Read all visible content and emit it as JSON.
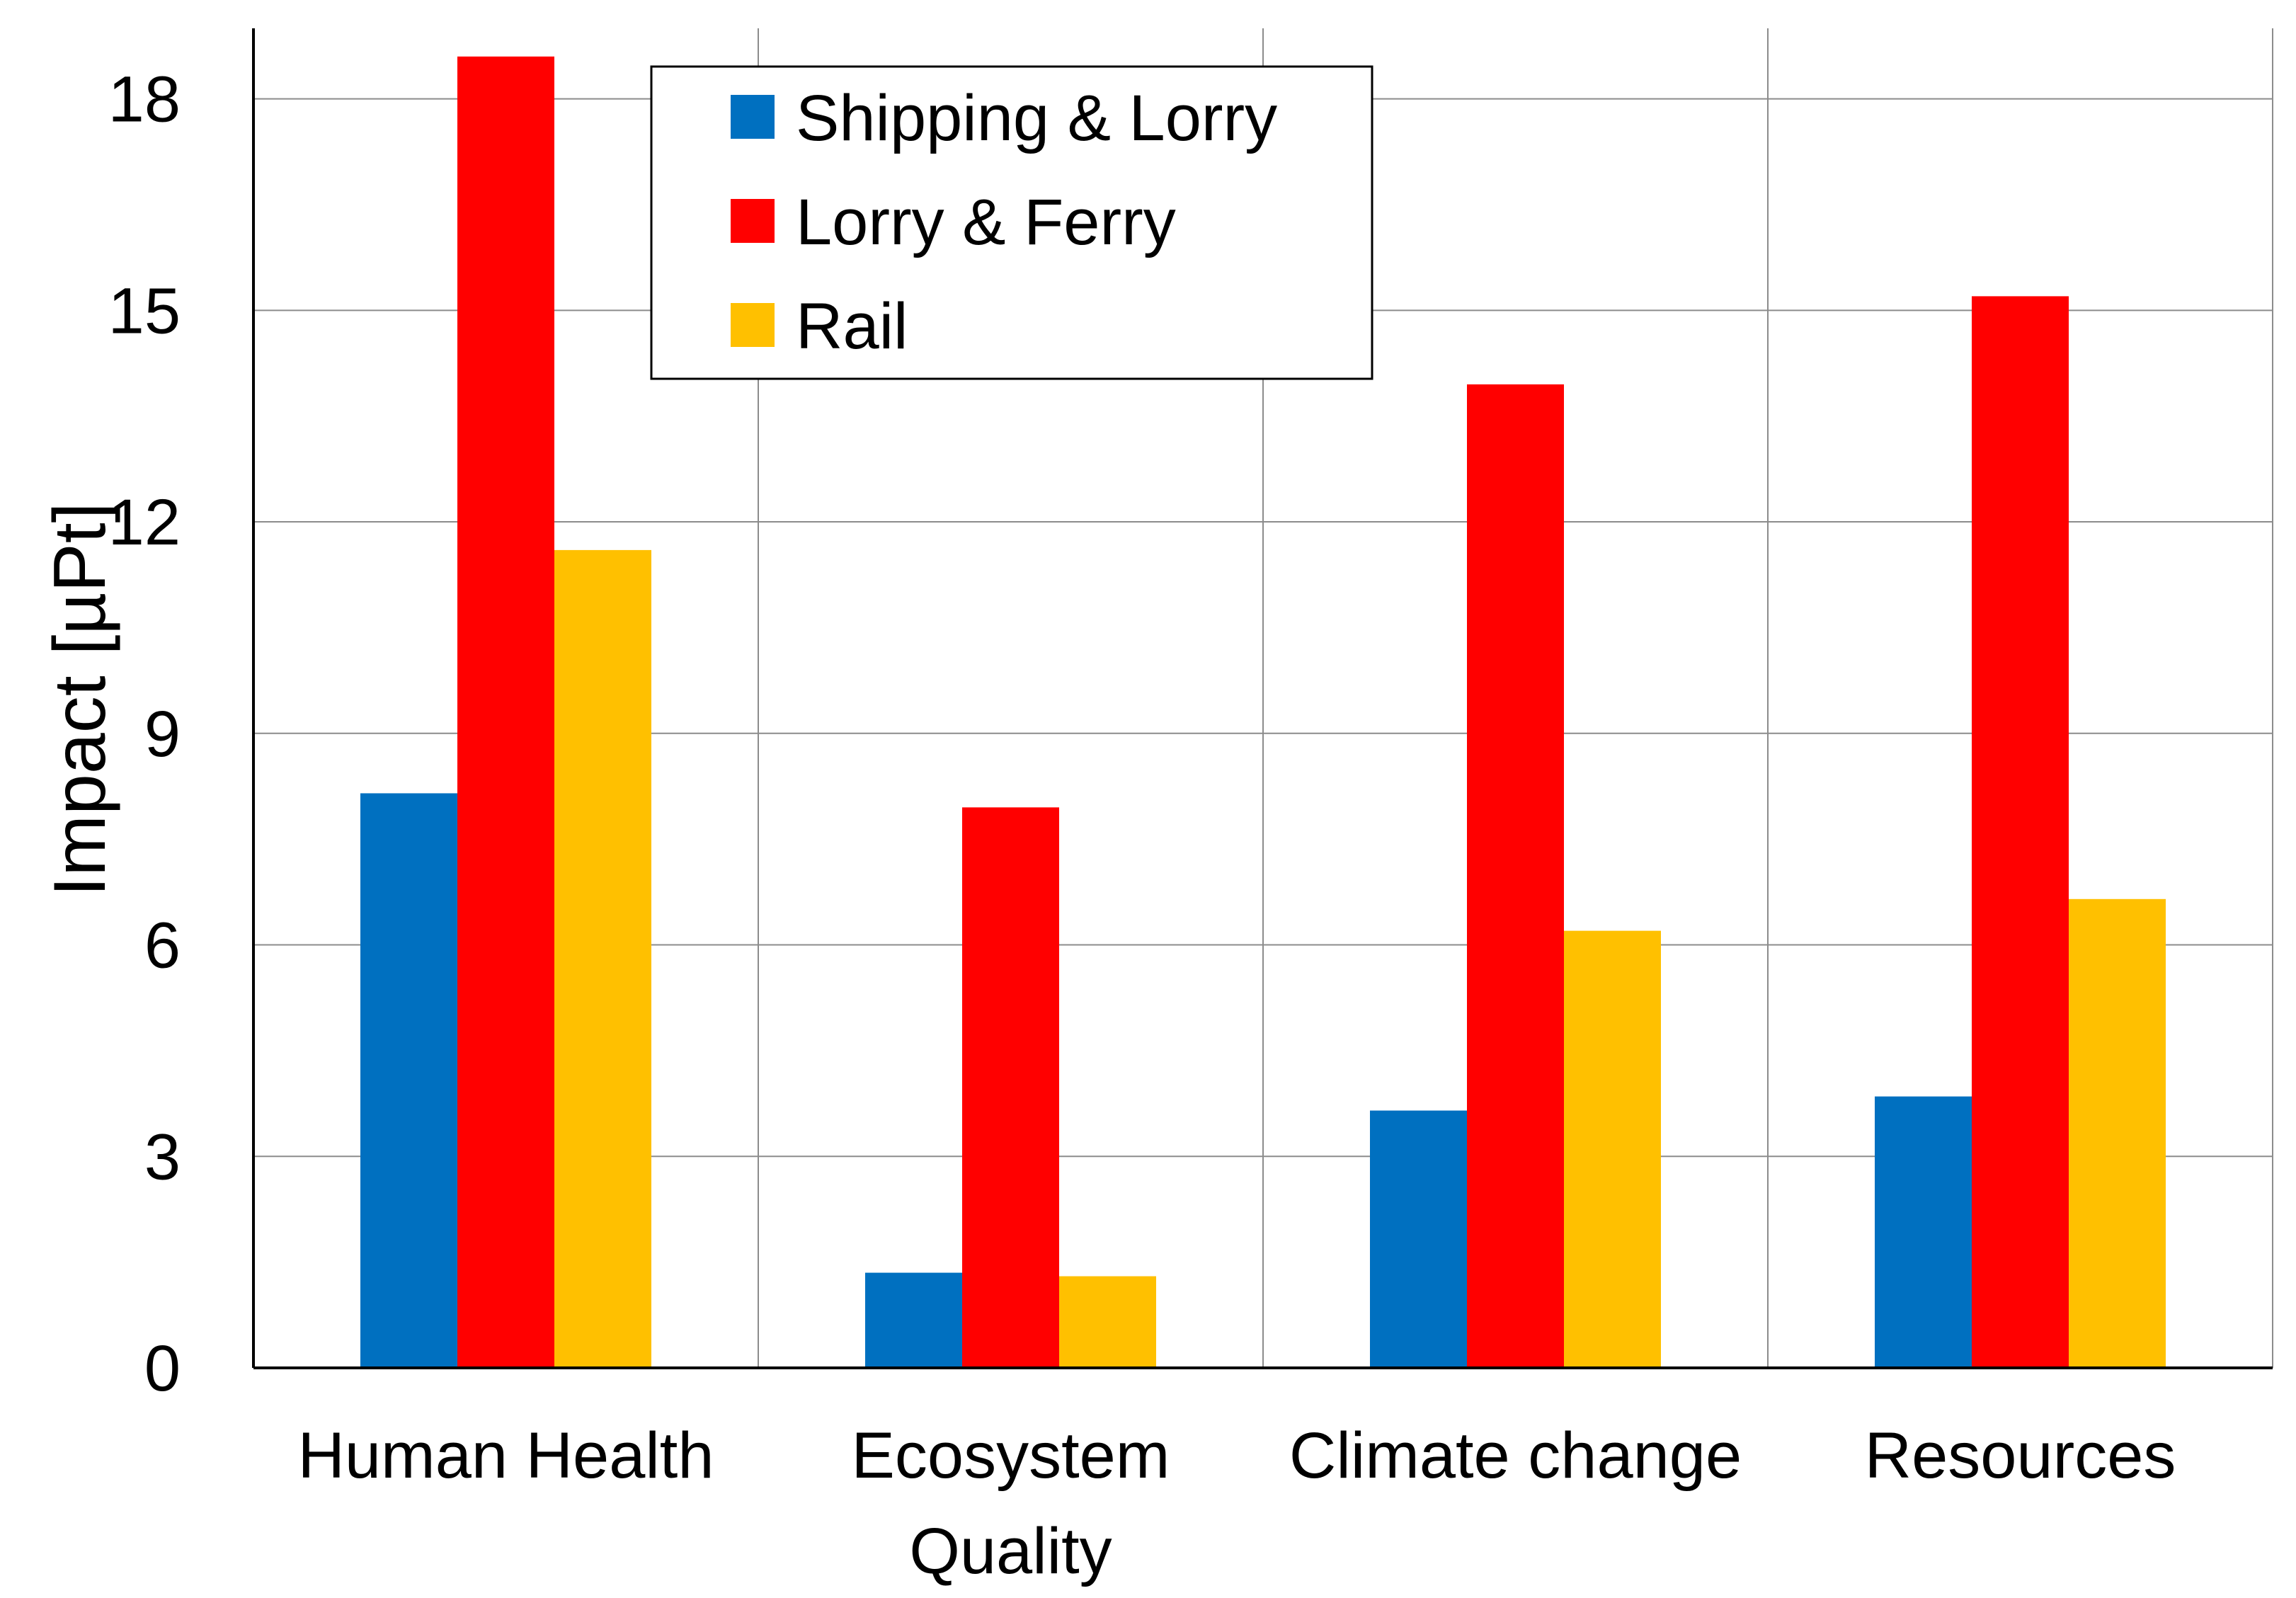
{
  "chart_data": {
    "type": "bar",
    "title": "",
    "xlabel": "",
    "ylabel": "Impact [µPt]",
    "ylim": [
      0,
      19
    ],
    "yticks": [
      0,
      3,
      6,
      9,
      12,
      15,
      18
    ],
    "grid": true,
    "legend_position": "top-center",
    "categories": [
      {
        "line1": "Human Health",
        "line2": ""
      },
      {
        "line1": "Ecosystem",
        "line2": "Quality"
      },
      {
        "line1": "Climate change",
        "line2": ""
      },
      {
        "line1": "Resources",
        "line2": ""
      }
    ],
    "series": [
      {
        "name": "Shipping & Lorry",
        "color": "#0070C0",
        "values": [
          8.15,
          1.35,
          3.65,
          3.85
        ]
      },
      {
        "name": "Lorry & Ferry",
        "color": "#FF0000",
        "values": [
          18.6,
          7.95,
          13.95,
          15.2
        ]
      },
      {
        "name": "Rail",
        "color": "#FFC000",
        "values": [
          11.6,
          1.3,
          6.2,
          6.65
        ]
      }
    ]
  }
}
